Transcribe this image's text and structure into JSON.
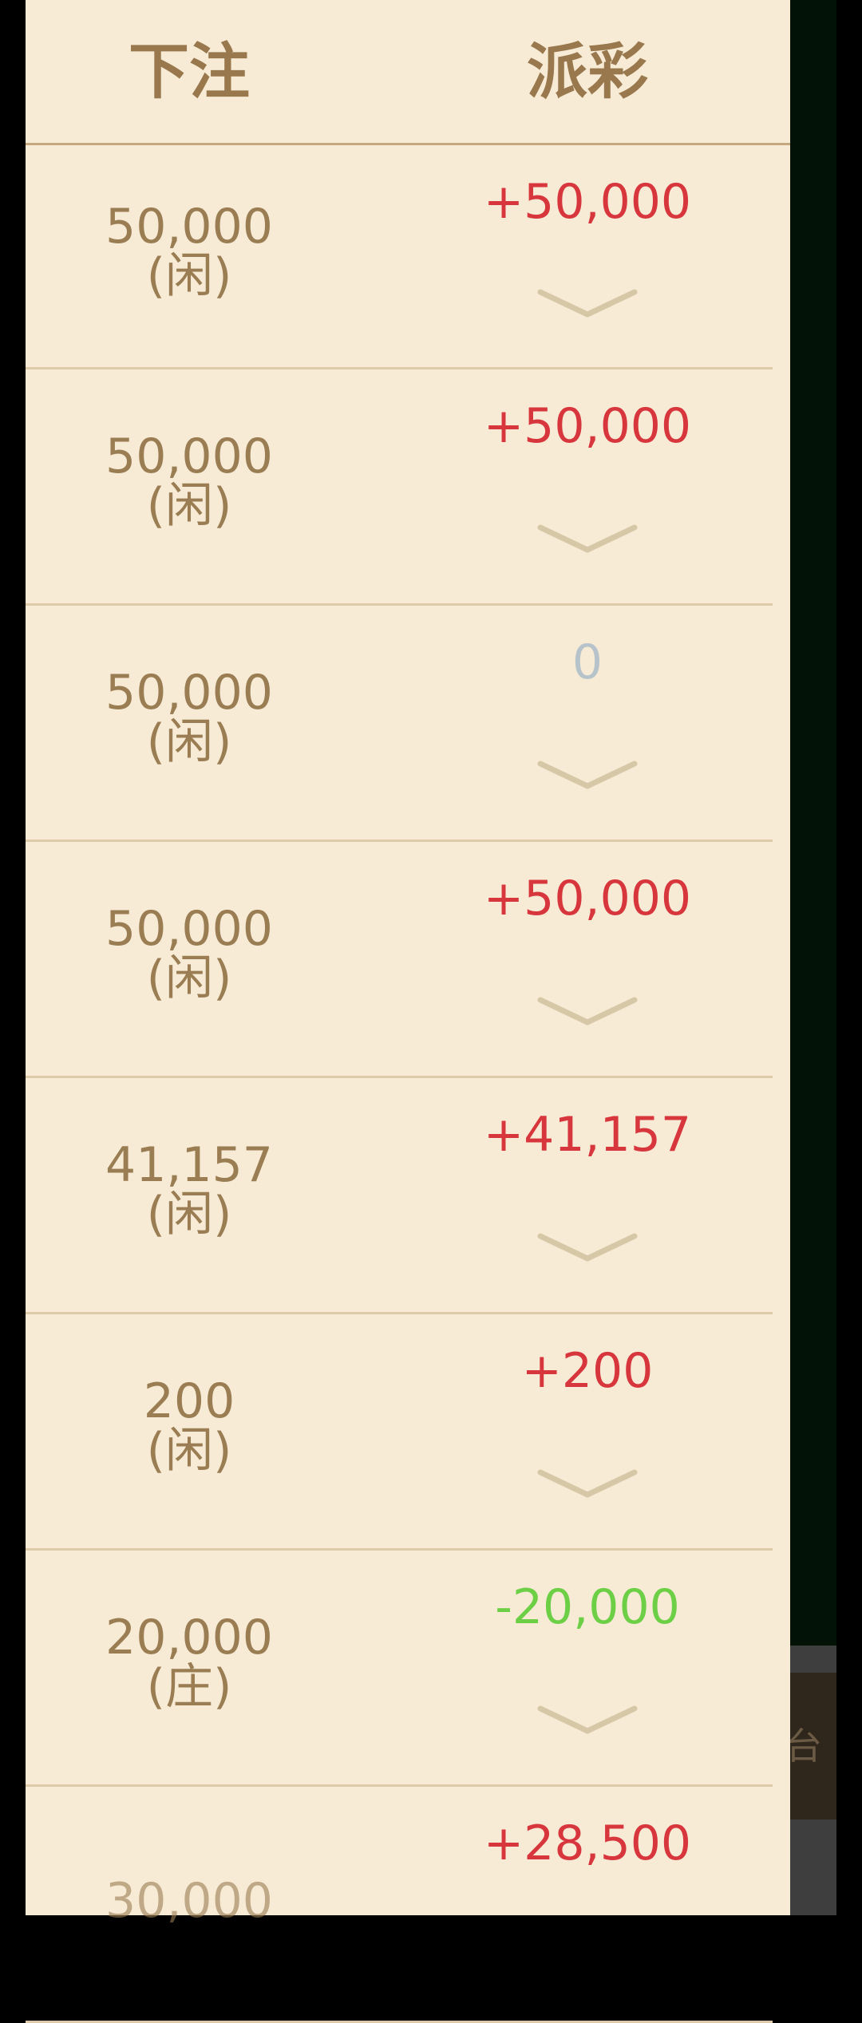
{
  "header": {
    "bet_label": "下注",
    "payout_label": "派彩"
  },
  "colors": {
    "background": "#f7ebd6",
    "text": "#9a7d52",
    "win": "#d8363d",
    "loss": "#6ccf46",
    "zero": "#b7c3cb"
  },
  "rows": [
    {
      "bet": "50,000",
      "side": "(闲)",
      "payout": "+50,000",
      "type": "pos"
    },
    {
      "bet": "50,000",
      "side": "(闲)",
      "payout": "+50,000",
      "type": "pos"
    },
    {
      "bet": "50,000",
      "side": "(闲)",
      "payout": "0",
      "type": "zero"
    },
    {
      "bet": "50,000",
      "side": "(闲)",
      "payout": "+50,000",
      "type": "pos"
    },
    {
      "bet": "41,157",
      "side": "(闲)",
      "payout": "+41,157",
      "type": "pos"
    },
    {
      "bet": "200",
      "side": "(闲)",
      "payout": "+200",
      "type": "pos"
    },
    {
      "bet": "20,000",
      "side": "(庄)",
      "payout": "-20,000",
      "type": "neg"
    },
    {
      "bet": "30,000",
      "side": "",
      "payout": "+28,500",
      "type": "pos"
    }
  ],
  "background_button": {
    "label": "台"
  },
  "icons": {
    "expand": "chevron-down-icon"
  }
}
